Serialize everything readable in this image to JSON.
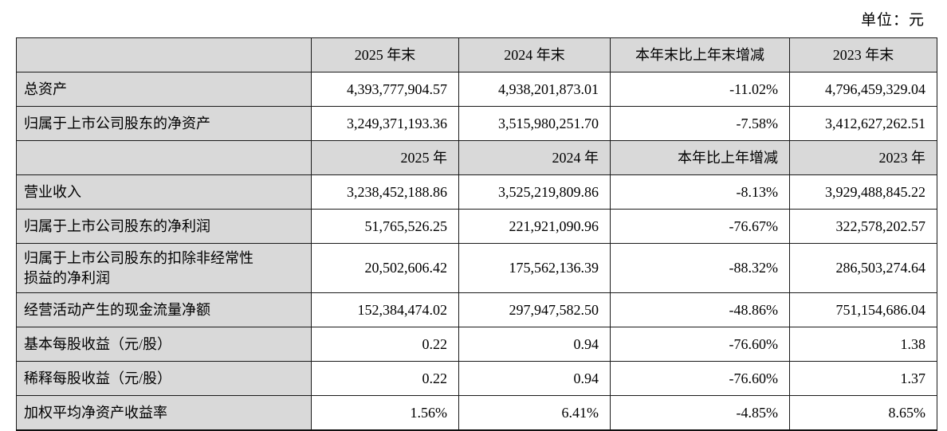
{
  "unit_label": "单位：元",
  "colors": {
    "header_bg": "#d9d9d9",
    "border": "#1a1a1a",
    "text": "#000000"
  },
  "rows": [
    {
      "type": "header",
      "cells": [
        "",
        "2025 年末",
        "2024 年末",
        "本年末比上年末增减",
        "2023 年末"
      ]
    },
    {
      "type": "data",
      "cells": [
        "总资产",
        "4,393,777,904.57",
        "4,938,201,873.01",
        "-11.02%",
        "4,796,459,329.04"
      ]
    },
    {
      "type": "data",
      "cells": [
        "归属于上市公司股东的净资产",
        "3,249,371,193.36",
        "3,515,980,251.70",
        "-7.58%",
        "3,412,627,262.51"
      ]
    },
    {
      "type": "header",
      "cells": [
        "",
        "2025 年",
        "2024 年",
        "本年比上年增减",
        "2023 年"
      ]
    },
    {
      "type": "data",
      "cells": [
        "营业收入",
        "3,238,452,188.86",
        "3,525,219,809.86",
        "-8.13%",
        "3,929,488,845.22"
      ]
    },
    {
      "type": "data",
      "cells": [
        "归属于上市公司股东的净利润",
        "51,765,526.25",
        "221,921,090.96",
        "-76.67%",
        "322,578,202.57"
      ]
    },
    {
      "type": "data",
      "cells": [
        "归属于上市公司股东的扣除非经常性损益的净利润",
        "20,502,606.42",
        "175,562,136.39",
        "-88.32%",
        "286,503,274.64"
      ]
    },
    {
      "type": "data",
      "cells": [
        "经营活动产生的现金流量净额",
        "152,384,474.02",
        "297,947,582.50",
        "-48.86%",
        "751,154,686.04"
      ]
    },
    {
      "type": "data",
      "cells": [
        "基本每股收益（元/股）",
        "0.22",
        "0.94",
        "-76.60%",
        "1.38"
      ]
    },
    {
      "type": "data",
      "cells": [
        "稀释每股收益（元/股）",
        "0.22",
        "0.94",
        "-76.60%",
        "1.37"
      ]
    },
    {
      "type": "data",
      "cells": [
        "加权平均净资产收益率",
        "1.56%",
        "6.41%",
        "-4.85%",
        "8.65%"
      ]
    }
  ]
}
